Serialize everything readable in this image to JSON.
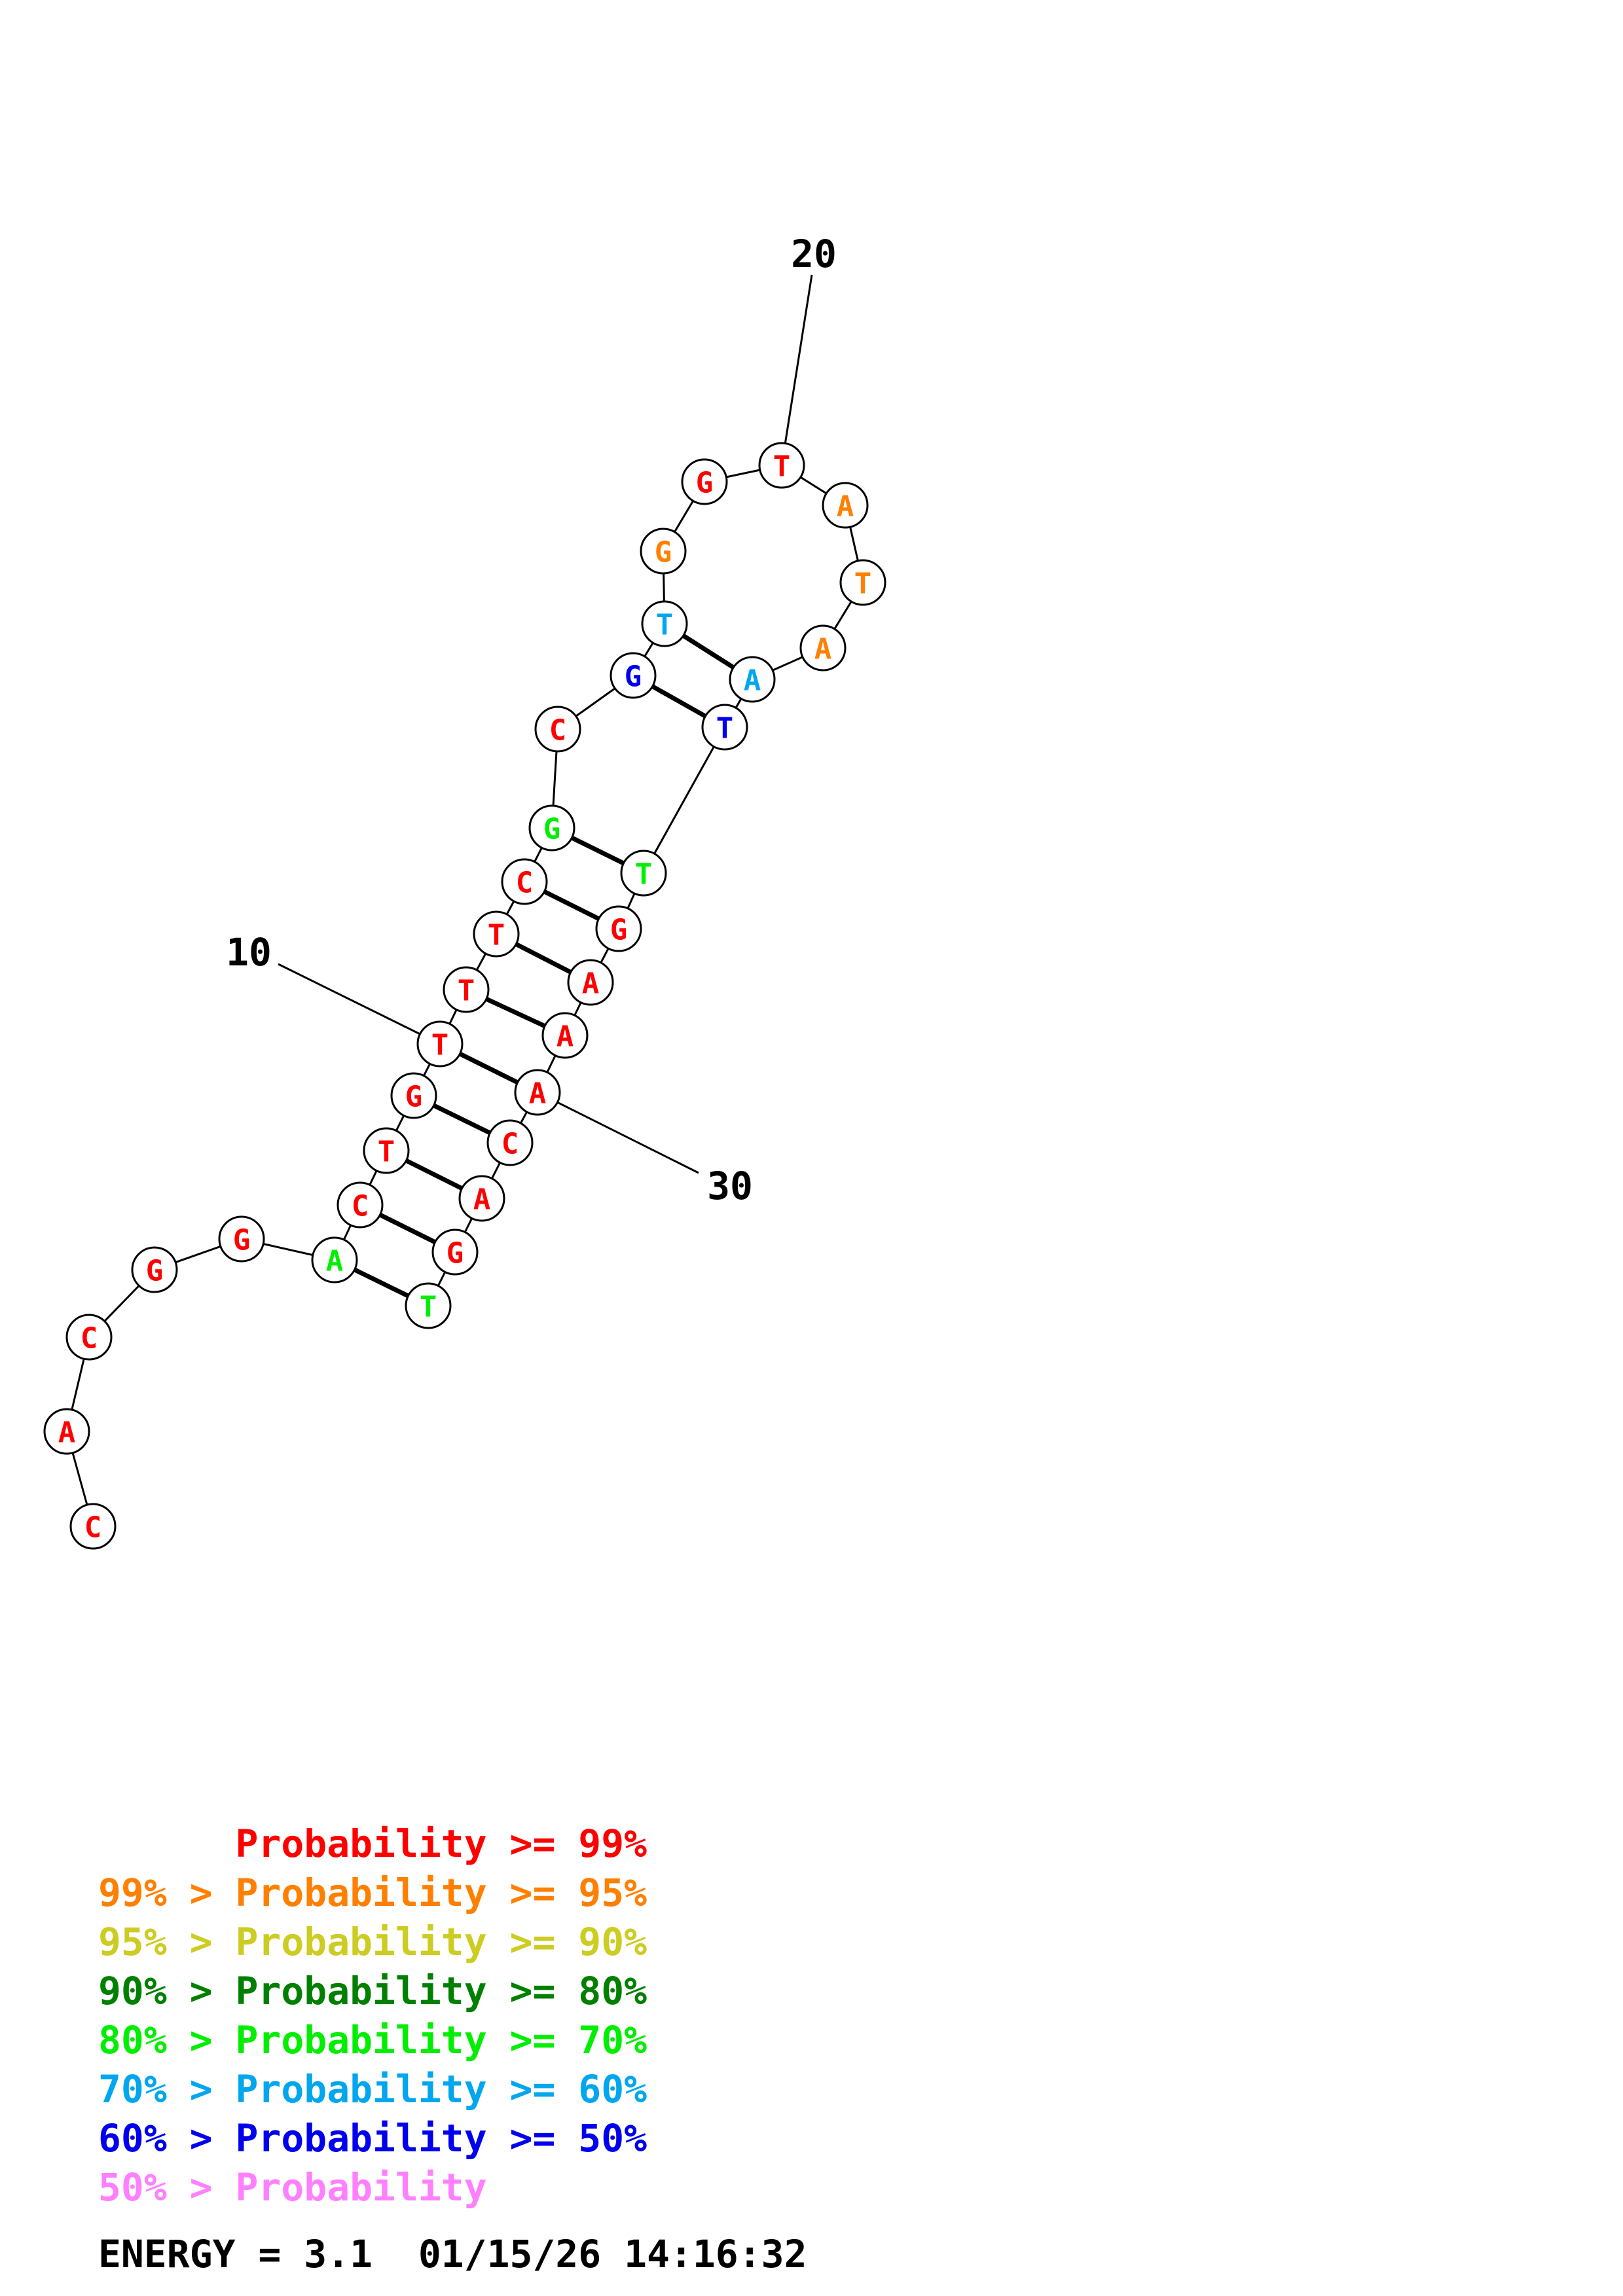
{
  "sequence": [
    {
      "base": "C",
      "color": "#ff0000"
    },
    {
      "base": "A",
      "color": "#ff0000"
    },
    {
      "base": "C",
      "color": "#ff0000"
    },
    {
      "base": "G",
      "color": "#ff0000"
    },
    {
      "base": "G",
      "color": "#ff0000"
    },
    {
      "base": "A",
      "color": "#00ee00"
    },
    {
      "base": "C",
      "color": "#ff0000"
    },
    {
      "base": "T",
      "color": "#ff0000"
    },
    {
      "base": "G",
      "color": "#ff0000"
    },
    {
      "base": "T",
      "color": "#ff0000"
    },
    {
      "base": "T",
      "color": "#ff0000"
    },
    {
      "base": "T",
      "color": "#ff0000"
    },
    {
      "base": "C",
      "color": "#ff0000"
    },
    {
      "base": "G",
      "color": "#00ee00"
    },
    {
      "base": "C",
      "color": "#ff0000"
    },
    {
      "base": "G",
      "color": "#0000ee"
    },
    {
      "base": "T",
      "color": "#00a6ee"
    },
    {
      "base": "G",
      "color": "#ff8000"
    },
    {
      "base": "G",
      "color": "#ff0000"
    },
    {
      "base": "T",
      "color": "#ff0000"
    },
    {
      "base": "A",
      "color": "#ff8000"
    },
    {
      "base": "T",
      "color": "#ff8000"
    },
    {
      "base": "A",
      "color": "#ff8000"
    },
    {
      "base": "A",
      "color": "#00a6ee"
    },
    {
      "base": "T",
      "color": "#0000ee"
    },
    {
      "base": "T",
      "color": "#00ee00"
    },
    {
      "base": "G",
      "color": "#ff0000"
    },
    {
      "base": "A",
      "color": "#ff0000"
    },
    {
      "base": "A",
      "color": "#ff0000"
    },
    {
      "base": "A",
      "color": "#ff0000"
    },
    {
      "base": "C",
      "color": "#ff0000"
    },
    {
      "base": "A",
      "color": "#ff0000"
    },
    {
      "base": "G",
      "color": "#ff0000"
    },
    {
      "base": "T",
      "color": "#00ee00"
    }
  ],
  "pairs": [
    [
      6,
      34
    ],
    [
      7,
      33
    ],
    [
      8,
      32
    ],
    [
      9,
      31
    ],
    [
      10,
      30
    ],
    [
      11,
      29
    ],
    [
      12,
      28
    ],
    [
      13,
      27
    ],
    [
      14,
      26
    ],
    [
      16,
      25
    ],
    [
      17,
      24
    ]
  ],
  "position_labels": [
    "10",
    "20",
    "30"
  ],
  "legend": [
    {
      "prefix": "    ",
      "text": "Probability >= 99%",
      "color": "#ff0000"
    },
    {
      "prefix": "99% > ",
      "text": "Probability >= 95%",
      "color": "#ff8000"
    },
    {
      "prefix": "95% > ",
      "text": "Probability >= 90%",
      "color": "#cccc22"
    },
    {
      "prefix": "90% > ",
      "text": "Probability >= 80%",
      "color": "#008000"
    },
    {
      "prefix": "80% > ",
      "text": "Probability >= 70%",
      "color": "#00ee00"
    },
    {
      "prefix": "70% > ",
      "text": "Probability >= 60%",
      "color": "#00a6ee"
    },
    {
      "prefix": "60% > ",
      "text": "Probability >= 50%",
      "color": "#0000ee"
    },
    {
      "prefix": "50% > ",
      "text": "Probability",
      "color": "#ff80ff"
    }
  ],
  "energy_line": "ENERGY = 3.1  01/15/26 14:16:32"
}
